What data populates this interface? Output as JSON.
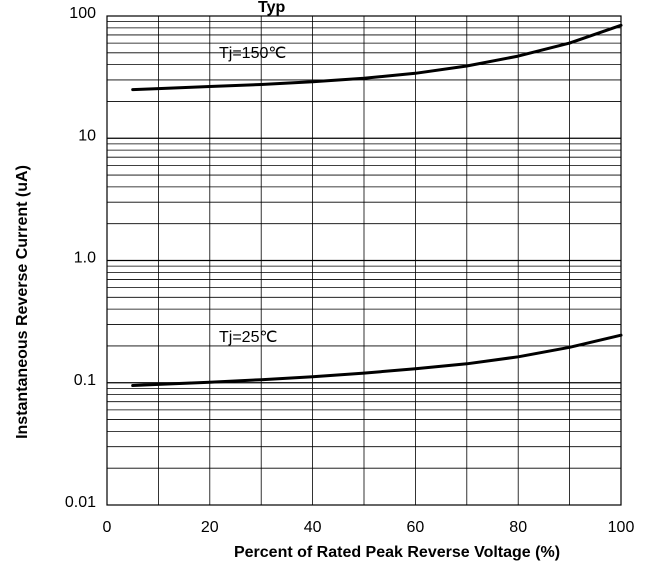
{
  "chart_data": {
    "type": "line",
    "title_fragment": "Typ",
    "xlabel": "Percent of Rated Peak Reverse Voltage  (%)",
    "ylabel": "Instantaneous Reverse Current (uA)",
    "xlim": [
      0,
      100
    ],
    "ylim": [
      0.01,
      100
    ],
    "y_scale": "log",
    "grid": true,
    "x_ticks": [
      "0",
      "20",
      "40",
      "60",
      "80",
      "100"
    ],
    "y_ticks": [
      "0.01",
      "0.1",
      "1.0",
      "10",
      "100"
    ],
    "series": [
      {
        "name": "Tj=150℃",
        "x": [
          5,
          10,
          20,
          30,
          40,
          50,
          60,
          70,
          80,
          90,
          100
        ],
        "y": [
          25,
          25.5,
          26.5,
          27.5,
          29,
          31,
          34,
          39,
          47,
          60,
          84
        ]
      },
      {
        "name": "Tj=25℃",
        "x": [
          5,
          10,
          20,
          30,
          40,
          50,
          60,
          70,
          80,
          90,
          100
        ],
        "y": [
          0.095,
          0.097,
          0.101,
          0.106,
          0.112,
          0.12,
          0.13,
          0.143,
          0.163,
          0.195,
          0.245
        ]
      }
    ]
  }
}
